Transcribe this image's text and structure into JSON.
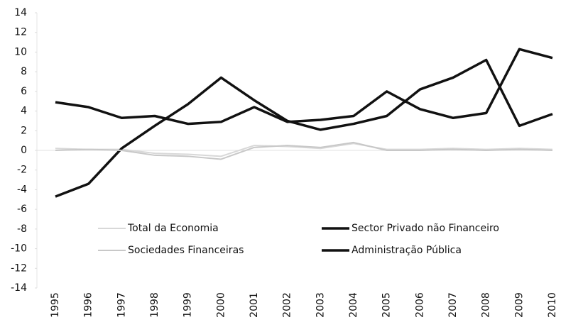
{
  "chart_data": {
    "type": "line",
    "categories": [
      "1995",
      "1996",
      "1997",
      "1998",
      "1999",
      "2000",
      "2001",
      "2002",
      "2003",
      "2004",
      "2005",
      "2006",
      "2007",
      "2008",
      "2009",
      "2010"
    ],
    "series": [
      {
        "name": "Total da Economia",
        "color": "#d8d8d8",
        "values": [
          0.2,
          0.1,
          0.1,
          -0.3,
          -0.4,
          -0.6,
          0.5,
          0.4,
          0.2,
          0.7,
          0.1,
          0.1,
          0.2,
          0.1,
          0.2,
          0.1
        ]
      },
      {
        "name": "Sector Privado não Financeiro",
        "color": "#111111",
        "values": [
          -4.7,
          -3.4,
          0.2,
          2.5,
          4.7,
          7.4,
          5.1,
          3.0,
          2.1,
          2.7,
          3.5,
          6.2,
          7.4,
          9.2,
          2.5,
          3.7
        ]
      },
      {
        "name": "Sociedades Financeiras",
        "color": "#c8c8c8",
        "values": [
          0.0,
          0.1,
          0.0,
          -0.5,
          -0.6,
          -0.9,
          0.3,
          0.5,
          0.3,
          0.8,
          0.0,
          0.0,
          0.1,
          0.0,
          0.1,
          0.0
        ]
      },
      {
        "name": "Administração Pública",
        "color": "#111111",
        "values": [
          4.9,
          4.4,
          3.3,
          3.5,
          2.7,
          2.9,
          4.4,
          2.9,
          3.1,
          3.5,
          6.0,
          4.2,
          3.3,
          3.8,
          10.3,
          9.4
        ]
      }
    ],
    "ylim": [
      -14,
      14
    ],
    "yticks": [
      -14,
      -12,
      -10,
      -8,
      -6,
      -4,
      -2,
      0,
      2,
      4,
      6,
      8,
      10,
      12,
      14
    ]
  }
}
